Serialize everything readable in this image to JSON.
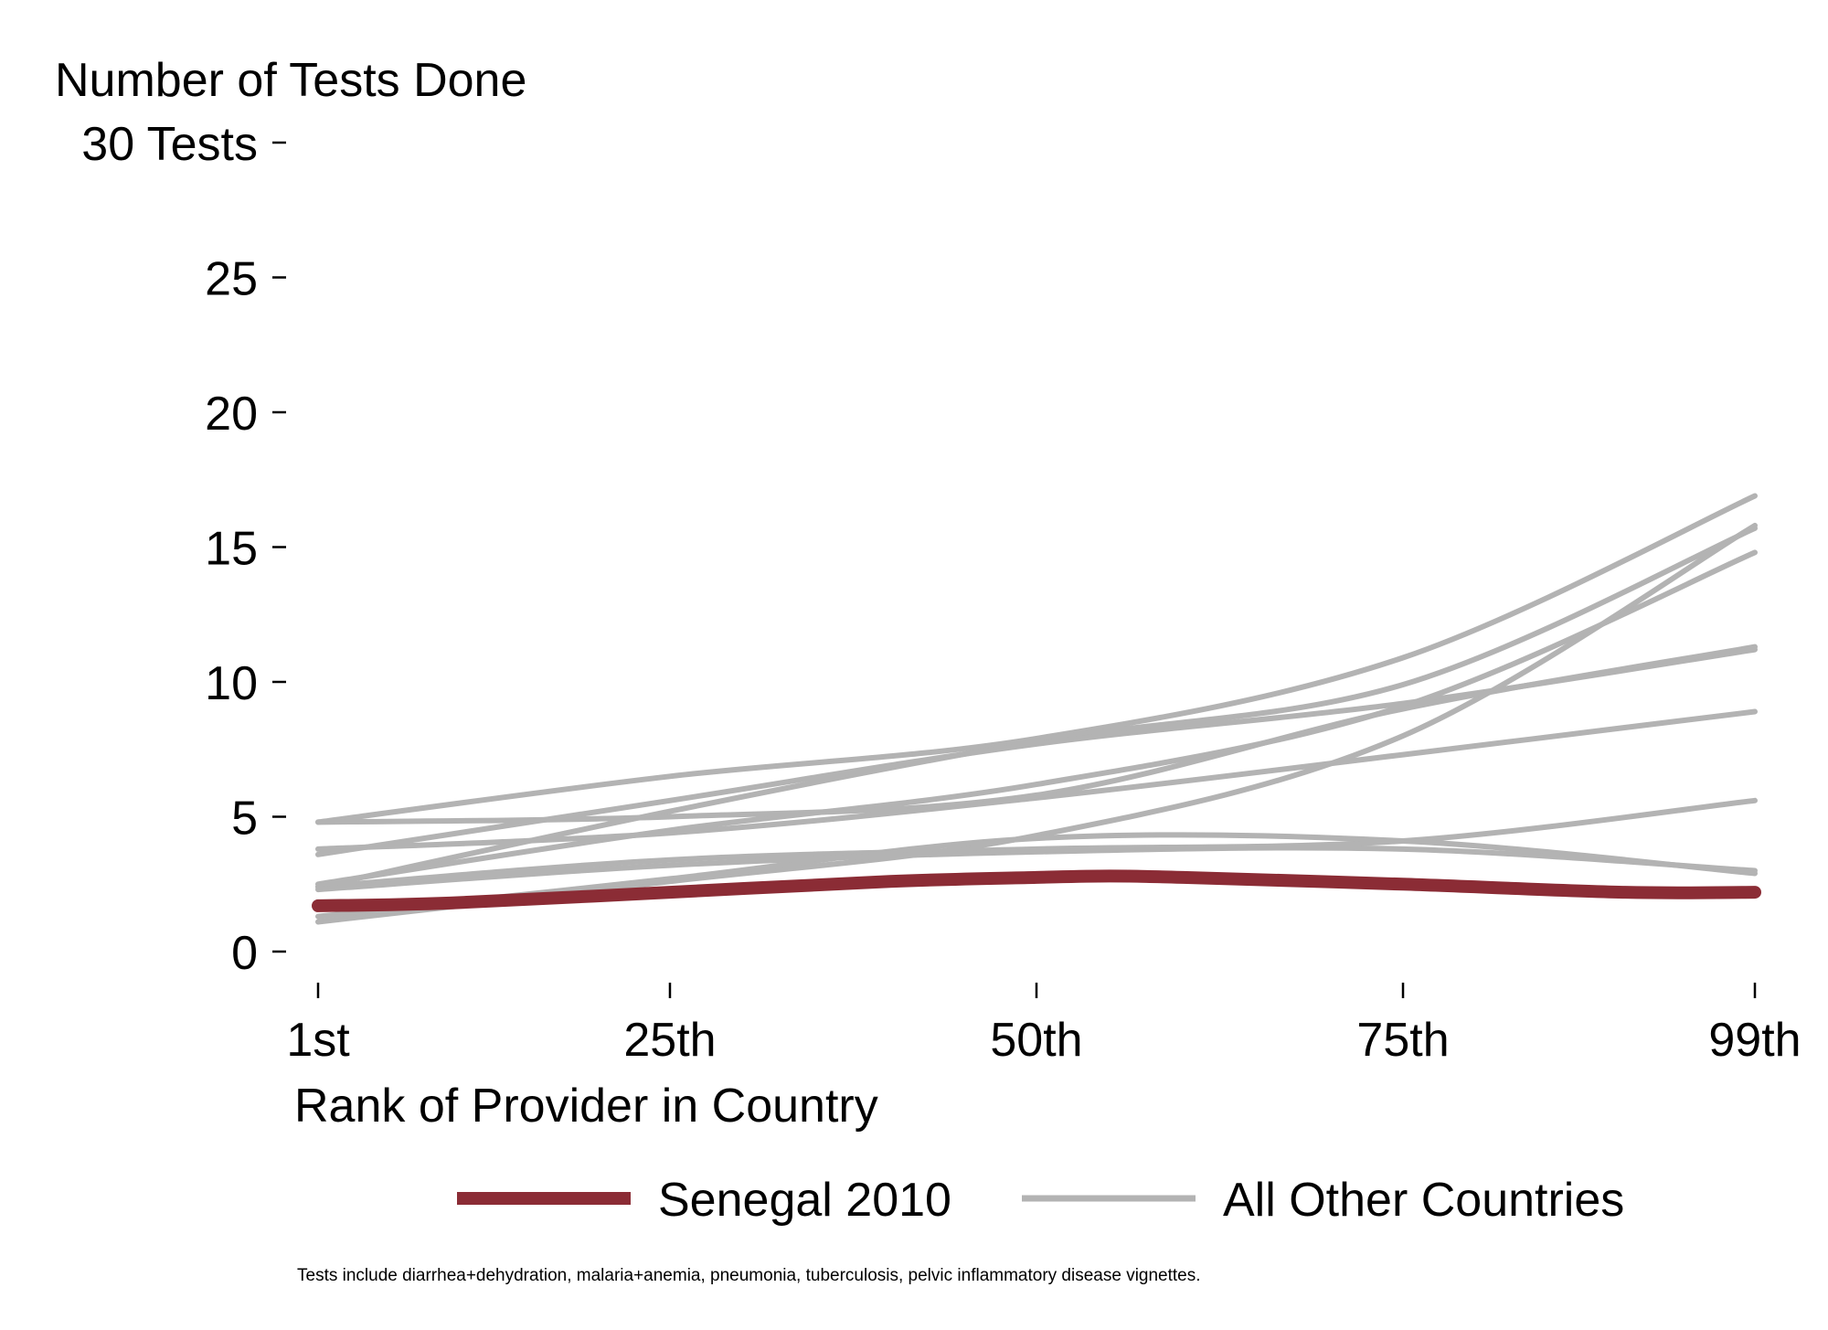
{
  "chart_data": {
    "type": "line",
    "title": "Number of Tests Done",
    "xlabel": "Rank of Provider in Country",
    "ylabel": "Number of Tests Done",
    "xlim": [
      1,
      99
    ],
    "ylim": [
      0,
      30
    ],
    "x_ticks": [
      {
        "value": 1,
        "label": "1st"
      },
      {
        "value": 25,
        "label": "25th"
      },
      {
        "value": 50,
        "label": "50th"
      },
      {
        "value": 75,
        "label": "75th"
      },
      {
        "value": 99,
        "label": "99th"
      }
    ],
    "y_ticks": [
      {
        "value": 0,
        "label": "0"
      },
      {
        "value": 5,
        "label": "5"
      },
      {
        "value": 10,
        "label": "10"
      },
      {
        "value": 15,
        "label": "15"
      },
      {
        "value": 20,
        "label": "20"
      },
      {
        "value": 25,
        "label": "25"
      },
      {
        "value": 30,
        "label": "30 Tests"
      }
    ],
    "grid": false,
    "legend_position": "bottom",
    "highlight": {
      "name": "Senegal 2010",
      "color": "#8b2c35",
      "x": [
        1,
        10,
        25,
        40,
        50,
        55,
        60,
        75,
        90,
        99
      ],
      "y": [
        1.7,
        1.8,
        2.2,
        2.6,
        2.75,
        2.8,
        2.75,
        2.5,
        2.2,
        2.2
      ]
    },
    "others_name": "All Other Countries",
    "others_color": "#b3b3b3",
    "series": [
      {
        "x": [
          1,
          25,
          50,
          75,
          99
        ],
        "y": [
          4.8,
          6.5,
          7.9,
          10.9,
          16.9
        ]
      },
      {
        "x": [
          1,
          25,
          50,
          75,
          99
        ],
        "y": [
          2.4,
          5.2,
          7.8,
          9.9,
          15.7
        ]
      },
      {
        "x": [
          1,
          25,
          50,
          75,
          99
        ],
        "y": [
          1.1,
          2.6,
          4.3,
          8.0,
          15.8
        ]
      },
      {
        "x": [
          1,
          25,
          50,
          75,
          99
        ],
        "y": [
          2.5,
          4.5,
          6.2,
          9.1,
          14.8
        ]
      },
      {
        "x": [
          1,
          25,
          50,
          75,
          99
        ],
        "y": [
          3.6,
          5.6,
          7.7,
          9.2,
          11.2
        ]
      },
      {
        "x": [
          1,
          25,
          50,
          75,
          99
        ],
        "y": [
          4.8,
          5.0,
          5.8,
          9.0,
          11.3
        ]
      },
      {
        "x": [
          1,
          25,
          50,
          75,
          99
        ],
        "y": [
          3.8,
          4.4,
          5.7,
          7.3,
          8.9
        ]
      },
      {
        "x": [
          1,
          25,
          50,
          75,
          99
        ],
        "y": [
          2.4,
          3.4,
          3.8,
          4.1,
          5.6
        ]
      },
      {
        "x": [
          1,
          25,
          50,
          75,
          99
        ],
        "y": [
          1.3,
          2.7,
          4.2,
          4.1,
          2.9
        ]
      },
      {
        "x": [
          1,
          25,
          50,
          75,
          99
        ],
        "y": [
          2.3,
          3.2,
          3.7,
          3.8,
          3.0
        ]
      }
    ]
  },
  "footnote": "Tests include diarrhea+dehydration, malaria+anemia, pneumonia, tuberculosis, pelvic inflammatory disease vignettes."
}
